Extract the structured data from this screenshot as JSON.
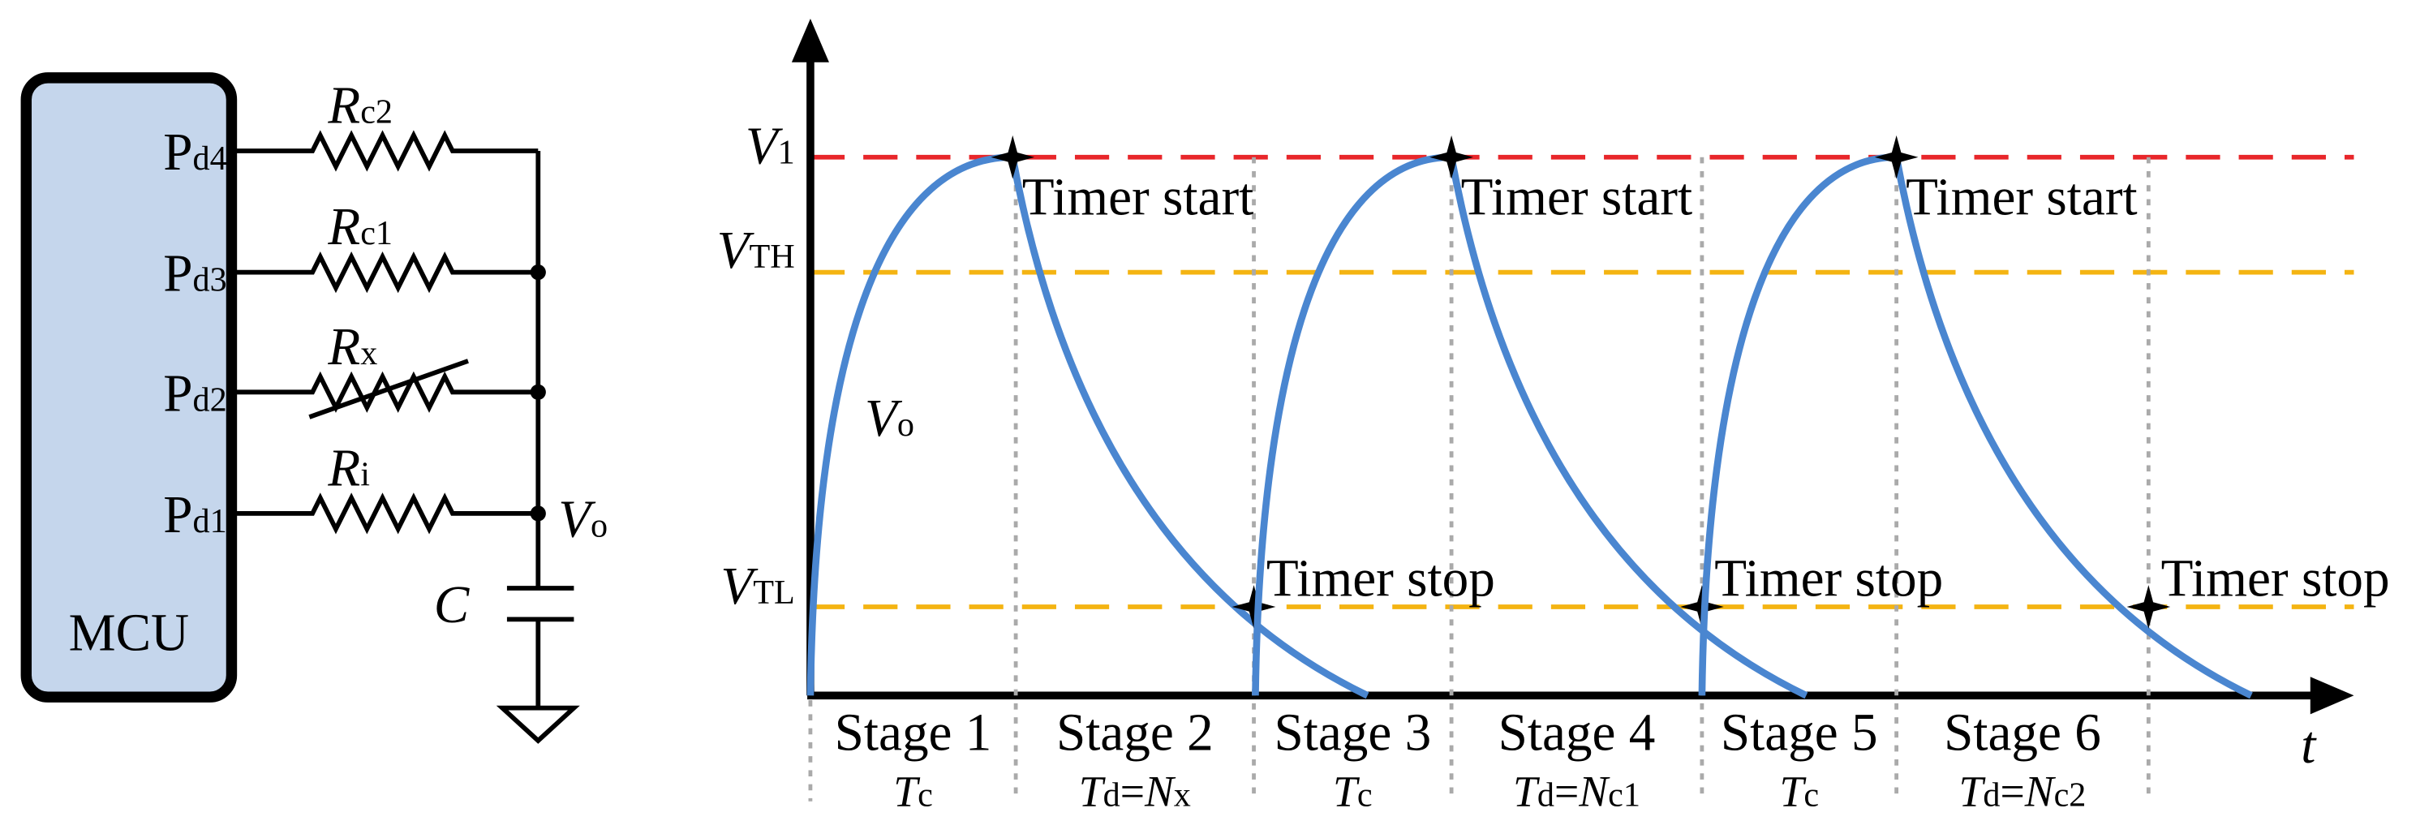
{
  "circuit": {
    "mcu": {
      "label": "MCU",
      "pins": [
        {
          "main": "P",
          "sub": "d4"
        },
        {
          "main": "P",
          "sub": "d3"
        },
        {
          "main": "P",
          "sub": "d2"
        },
        {
          "main": "P",
          "sub": "d1"
        }
      ]
    },
    "resistors": [
      {
        "main": "R",
        "sub": "c2"
      },
      {
        "main": "R",
        "sub": "c1"
      },
      {
        "main": "R",
        "sub": "x"
      },
      {
        "main": "R",
        "sub": "i"
      }
    ],
    "node_label": {
      "main": "V",
      "sub": "o"
    },
    "capacitor": "C"
  },
  "waveform": {
    "axis_label": "t",
    "curve_label": {
      "main": "V",
      "sub": "o"
    },
    "levels": [
      {
        "main": "V",
        "sub": "1"
      },
      {
        "main": "V",
        "sub": "TH"
      },
      {
        "main": "V",
        "sub": "TL"
      }
    ],
    "timer_start": [
      "Timer start",
      "Timer start",
      "Timer start"
    ],
    "timer_stop": [
      "Timer stop",
      "Timer stop",
      "Timer stop"
    ],
    "stages": [
      {
        "name": "Stage 1",
        "duration": {
          "symbol": "T",
          "sub": "c"
        }
      },
      {
        "name": "Stage 2",
        "duration": {
          "symbol": "T",
          "sub": "d",
          "equals": "=",
          "value_symbol": "N",
          "value_sub": "x"
        }
      },
      {
        "name": "Stage 3",
        "duration": {
          "symbol": "T",
          "sub": "c"
        }
      },
      {
        "name": "Stage 4",
        "duration": {
          "symbol": "T",
          "sub": "d",
          "equals": "=",
          "value_symbol": "N",
          "value_sub": "c1"
        }
      },
      {
        "name": "Stage 5",
        "duration": {
          "symbol": "T",
          "sub": "c"
        }
      },
      {
        "name": "Stage 6",
        "duration": {
          "symbol": "T",
          "sub": "d",
          "equals": "=",
          "value_symbol": "N",
          "value_sub": "c2"
        }
      }
    ]
  }
}
